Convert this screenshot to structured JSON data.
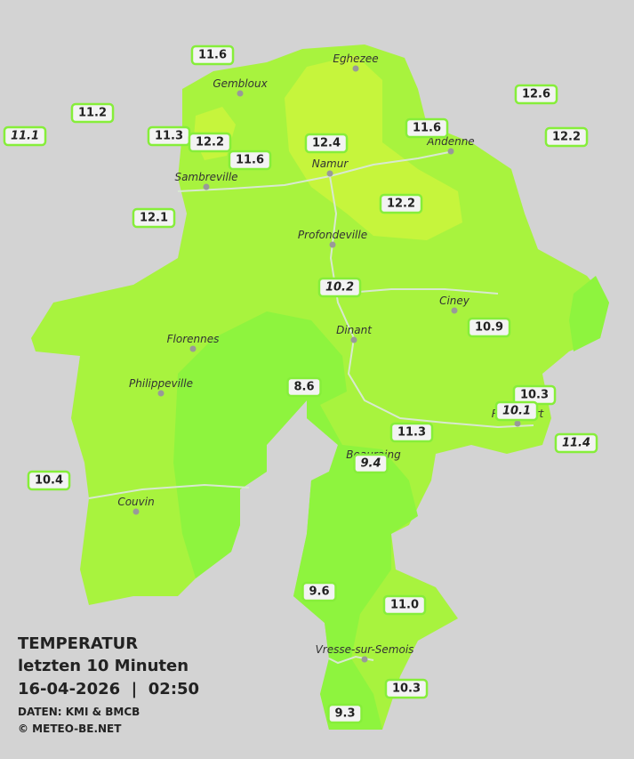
{
  "caption": {
    "title": "TEMPERATUR",
    "subtitle": "letzten 10 Minuten",
    "timestamp": "16-04-2026  |  02:50",
    "source": "DATEN: KMI & BMCB",
    "copyright": "© METEO-BE.NET"
  },
  "cities": [
    {
      "name": "Eghezee"
    },
    {
      "name": "Gembloux"
    },
    {
      "name": "Andenne"
    },
    {
      "name": "Namur"
    },
    {
      "name": "Sambreville"
    },
    {
      "name": "Profondeville"
    },
    {
      "name": "Ciney"
    },
    {
      "name": "Florennes"
    },
    {
      "name": "Dinant"
    },
    {
      "name": "Philippeville"
    },
    {
      "name": "Rochefort"
    },
    {
      "name": "Beauraing"
    },
    {
      "name": "Couvin"
    },
    {
      "name": "Vresse-sur-Semois"
    }
  ],
  "stations": [
    {
      "label": "11.6"
    },
    {
      "label": "11.2"
    },
    {
      "label": "11.1",
      "italic": true
    },
    {
      "label": "11.3"
    },
    {
      "label": "12.2"
    },
    {
      "label": "11.6"
    },
    {
      "label": "12.4"
    },
    {
      "label": "11.6"
    },
    {
      "label": "12.6"
    },
    {
      "label": "12.2"
    },
    {
      "label": "12.1"
    },
    {
      "label": "12.2"
    },
    {
      "label": "10.2",
      "italic": true
    },
    {
      "label": "10.9"
    },
    {
      "label": "8.6"
    },
    {
      "label": "10.3"
    },
    {
      "label": "10.1",
      "italic": true
    },
    {
      "label": "11.3"
    },
    {
      "label": "11.4",
      "italic": true
    },
    {
      "label": "9.4",
      "italic": true
    },
    {
      "label": "10.4"
    },
    {
      "label": "9.6"
    },
    {
      "label": "11.0"
    },
    {
      "label": "10.3"
    },
    {
      "label": "9.3"
    }
  ]
}
